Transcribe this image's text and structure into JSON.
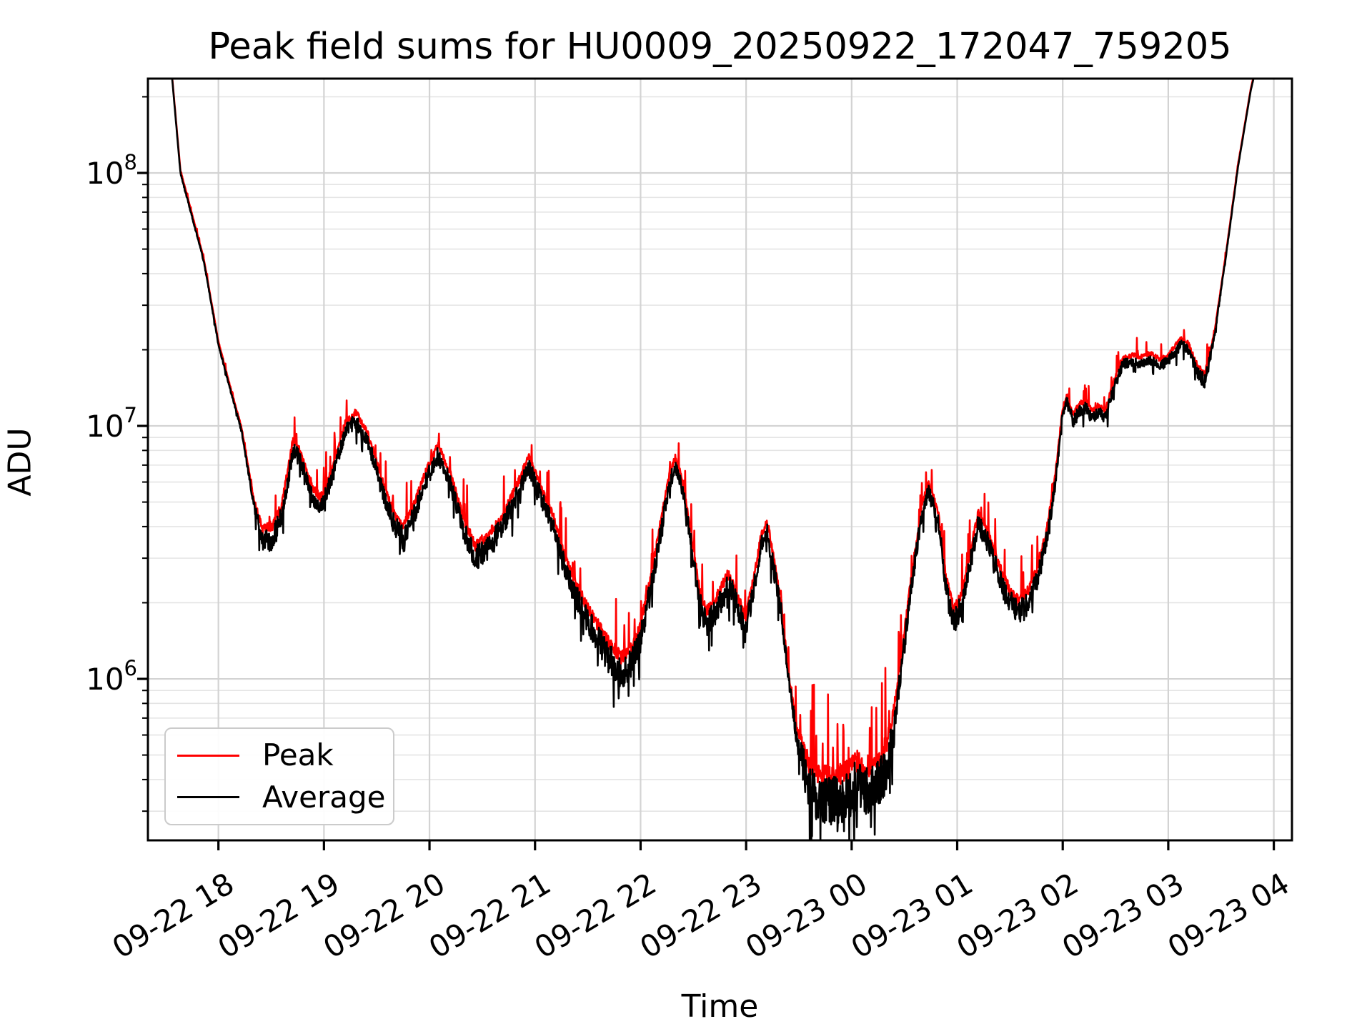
{
  "title": "Peak field sums for HU0009_20250922_172047_759205",
  "axes": {
    "x_label": "Time",
    "y_label": "ADU",
    "x_tick_labels": [
      "09-22 18",
      "09-22 19",
      "09-22 20",
      "09-22 21",
      "09-22 22",
      "09-22 23",
      "09-23 00",
      "09-23 01",
      "09-23 02",
      "09-23 03",
      "09-23 04"
    ],
    "y_tick_exponents": [
      6,
      7,
      8
    ],
    "y_tick_base": "10"
  },
  "legend": {
    "items": [
      {
        "label": "Peak",
        "color": "#ff0000"
      },
      {
        "label": "Average",
        "color": "#000000"
      }
    ]
  },
  "colors": {
    "peak": "#ff0000",
    "average": "#000000",
    "grid_major": "#d3d3d3",
    "grid_minor": "#e4e4e4",
    "spine": "#000000",
    "background": "#ffffff"
  },
  "chart_data": {
    "type": "line",
    "title": "Peak field sums for HU0009_20250922_172047_759205",
    "xlabel": "Time",
    "ylabel": "ADU",
    "y_scale": "log",
    "grid": "major+minor",
    "legend_position": "lower left",
    "ylim": [
      230000,
      236000000
    ],
    "x_hours_after_1700": [
      0.332,
      11.172
    ],
    "x_tick_hours": [
      1,
      2,
      3,
      4,
      5,
      6,
      7,
      8,
      9,
      10,
      11
    ],
    "series": [
      {
        "name": "Peak",
        "color": "#ff0000",
        "derived": "average_times_upward_noise"
      },
      {
        "name": "Average",
        "color": "#000000",
        "derived": "keypoints"
      }
    ],
    "note": "keypoints = [hours_after_09-22_17:00, average_ADU, noise_amplitude_dex]; both curves clip at top of axes at start and end",
    "keypoints": [
      [
        0.3,
        500000000.0,
        0.0
      ],
      [
        0.56,
        240000000.0,
        0.0
      ],
      [
        0.64,
        100000000.0,
        0.004
      ],
      [
        0.86,
        45000000.0,
        0.004
      ],
      [
        1.0,
        21000000.0,
        0.005
      ],
      [
        1.12,
        13500000.0,
        0.006
      ],
      [
        1.22,
        9500000.0,
        0.008
      ],
      [
        1.33,
        5000000.0,
        0.015
      ],
      [
        1.42,
        3500000.0,
        0.045
      ],
      [
        1.52,
        3600000.0,
        0.05
      ],
      [
        1.6,
        4400000.0,
        0.04
      ],
      [
        1.71,
        8200000.0,
        0.035
      ],
      [
        1.78,
        7200000.0,
        0.035
      ],
      [
        1.88,
        5300000.0,
        0.035
      ],
      [
        1.97,
        4700000.0,
        0.04
      ],
      [
        2.08,
        6300000.0,
        0.03
      ],
      [
        2.2,
        9500000.0,
        0.03
      ],
      [
        2.3,
        10500000.0,
        0.03
      ],
      [
        2.42,
        8600000.0,
        0.03
      ],
      [
        2.55,
        5600000.0,
        0.035
      ],
      [
        2.66,
        4100000.0,
        0.04
      ],
      [
        2.75,
        3600000.0,
        0.045
      ],
      [
        2.85,
        4400000.0,
        0.04
      ],
      [
        2.97,
        6100000.0,
        0.035
      ],
      [
        3.08,
        7700000.0,
        0.035
      ],
      [
        3.2,
        5900000.0,
        0.035
      ],
      [
        3.33,
        3800000.0,
        0.045
      ],
      [
        3.43,
        3000000.0,
        0.05
      ],
      [
        3.55,
        3250000.0,
        0.05
      ],
      [
        3.68,
        3900000.0,
        0.045
      ],
      [
        3.82,
        5200000.0,
        0.04
      ],
      [
        3.94,
        6900000.0,
        0.035
      ],
      [
        4.06,
        5200000.0,
        0.035
      ],
      [
        4.18,
        3900000.0,
        0.04
      ],
      [
        4.3,
        2600000.0,
        0.045
      ],
      [
        4.44,
        1900000.0,
        0.05
      ],
      [
        4.57,
        1500000.0,
        0.055
      ],
      [
        4.7,
        1200000.0,
        0.06
      ],
      [
        4.82,
        1050000.0,
        0.065
      ],
      [
        4.92,
        1150000.0,
        0.06
      ],
      [
        5.0,
        1450000.0,
        0.055
      ],
      [
        5.1,
        2300000.0,
        0.05
      ],
      [
        5.18,
        3600000.0,
        0.04
      ],
      [
        5.27,
        5800000.0,
        0.035
      ],
      [
        5.33,
        7000000.0,
        0.03
      ],
      [
        5.4,
        5600000.0,
        0.03
      ],
      [
        5.48,
        3400000.0,
        0.035
      ],
      [
        5.56,
        2000000.0,
        0.045
      ],
      [
        5.62,
        1650000.0,
        0.05
      ],
      [
        5.7,
        1800000.0,
        0.05
      ],
      [
        5.78,
        2100000.0,
        0.05
      ],
      [
        5.84,
        2350000.0,
        0.05
      ],
      [
        5.92,
        1900000.0,
        0.05
      ],
      [
        5.99,
        1550000.0,
        0.05
      ],
      [
        6.07,
        2200000.0,
        0.045
      ],
      [
        6.14,
        3300000.0,
        0.04
      ],
      [
        6.2,
        3800000.0,
        0.04
      ],
      [
        6.27,
        2600000.0,
        0.04
      ],
      [
        6.33,
        1900000.0,
        0.035
      ],
      [
        6.4,
        1000000.0,
        0.03
      ],
      [
        6.48,
        580000.0,
        0.05
      ],
      [
        6.57,
        400000.0,
        0.09
      ],
      [
        6.67,
        340000.0,
        0.1
      ],
      [
        6.8,
        330000.0,
        0.1
      ],
      [
        6.93,
        340000.0,
        0.1
      ],
      [
        7.05,
        380000.0,
        0.1
      ],
      [
        7.18,
        360000.0,
        0.1
      ],
      [
        7.3,
        410000.0,
        0.1
      ],
      [
        7.38,
        550000.0,
        0.08
      ],
      [
        7.46,
        1000000.0,
        0.05
      ],
      [
        7.56,
        2200000.0,
        0.04
      ],
      [
        7.66,
        4400000.0,
        0.035
      ],
      [
        7.73,
        5500000.0,
        0.03
      ],
      [
        7.82,
        4200000.0,
        0.035
      ],
      [
        7.9,
        2200000.0,
        0.045
      ],
      [
        7.97,
        1650000.0,
        0.05
      ],
      [
        8.05,
        2000000.0,
        0.05
      ],
      [
        8.12,
        2800000.0,
        0.045
      ],
      [
        8.2,
        4100000.0,
        0.04
      ],
      [
        8.3,
        3400000.0,
        0.04
      ],
      [
        8.4,
        2500000.0,
        0.045
      ],
      [
        8.5,
        2000000.0,
        0.05
      ],
      [
        8.58,
        1800000.0,
        0.05
      ],
      [
        8.68,
        2000000.0,
        0.05
      ],
      [
        8.76,
        2500000.0,
        0.045
      ],
      [
        8.85,
        3600000.0,
        0.04
      ],
      [
        8.93,
        6000000.0,
        0.03
      ],
      [
        9.0,
        11000000.0,
        0.025
      ],
      [
        9.04,
        12500000.0,
        0.025
      ],
      [
        9.1,
        10400000.0,
        0.025
      ],
      [
        9.16,
        11500000.0,
        0.025
      ],
      [
        9.22,
        11800000.0,
        0.025
      ],
      [
        9.28,
        10600000.0,
        0.025
      ],
      [
        9.34,
        11300000.0,
        0.025
      ],
      [
        9.4,
        10700000.0,
        0.025
      ],
      [
        9.48,
        14000000.0,
        0.02
      ],
      [
        9.57,
        17500000.0,
        0.02
      ],
      [
        9.66,
        18000000.0,
        0.02
      ],
      [
        9.74,
        17700000.0,
        0.02
      ],
      [
        9.83,
        18300000.0,
        0.02
      ],
      [
        9.93,
        17200000.0,
        0.02
      ],
      [
        10.02,
        18500000.0,
        0.02
      ],
      [
        10.12,
        21000000.0,
        0.02
      ],
      [
        10.19,
        20000000.0,
        0.02
      ],
      [
        10.28,
        16000000.0,
        0.025
      ],
      [
        10.35,
        15000000.0,
        0.03
      ],
      [
        10.44,
        23000000.0,
        0.01
      ],
      [
        10.55,
        48000000.0,
        0.004
      ],
      [
        10.66,
        105000000.0,
        0.002
      ],
      [
        10.78,
        210000000.0,
        0.0
      ],
      [
        10.88,
        320000000.0,
        0.0
      ],
      [
        11.17,
        600000000.0,
        0.0
      ]
    ]
  }
}
